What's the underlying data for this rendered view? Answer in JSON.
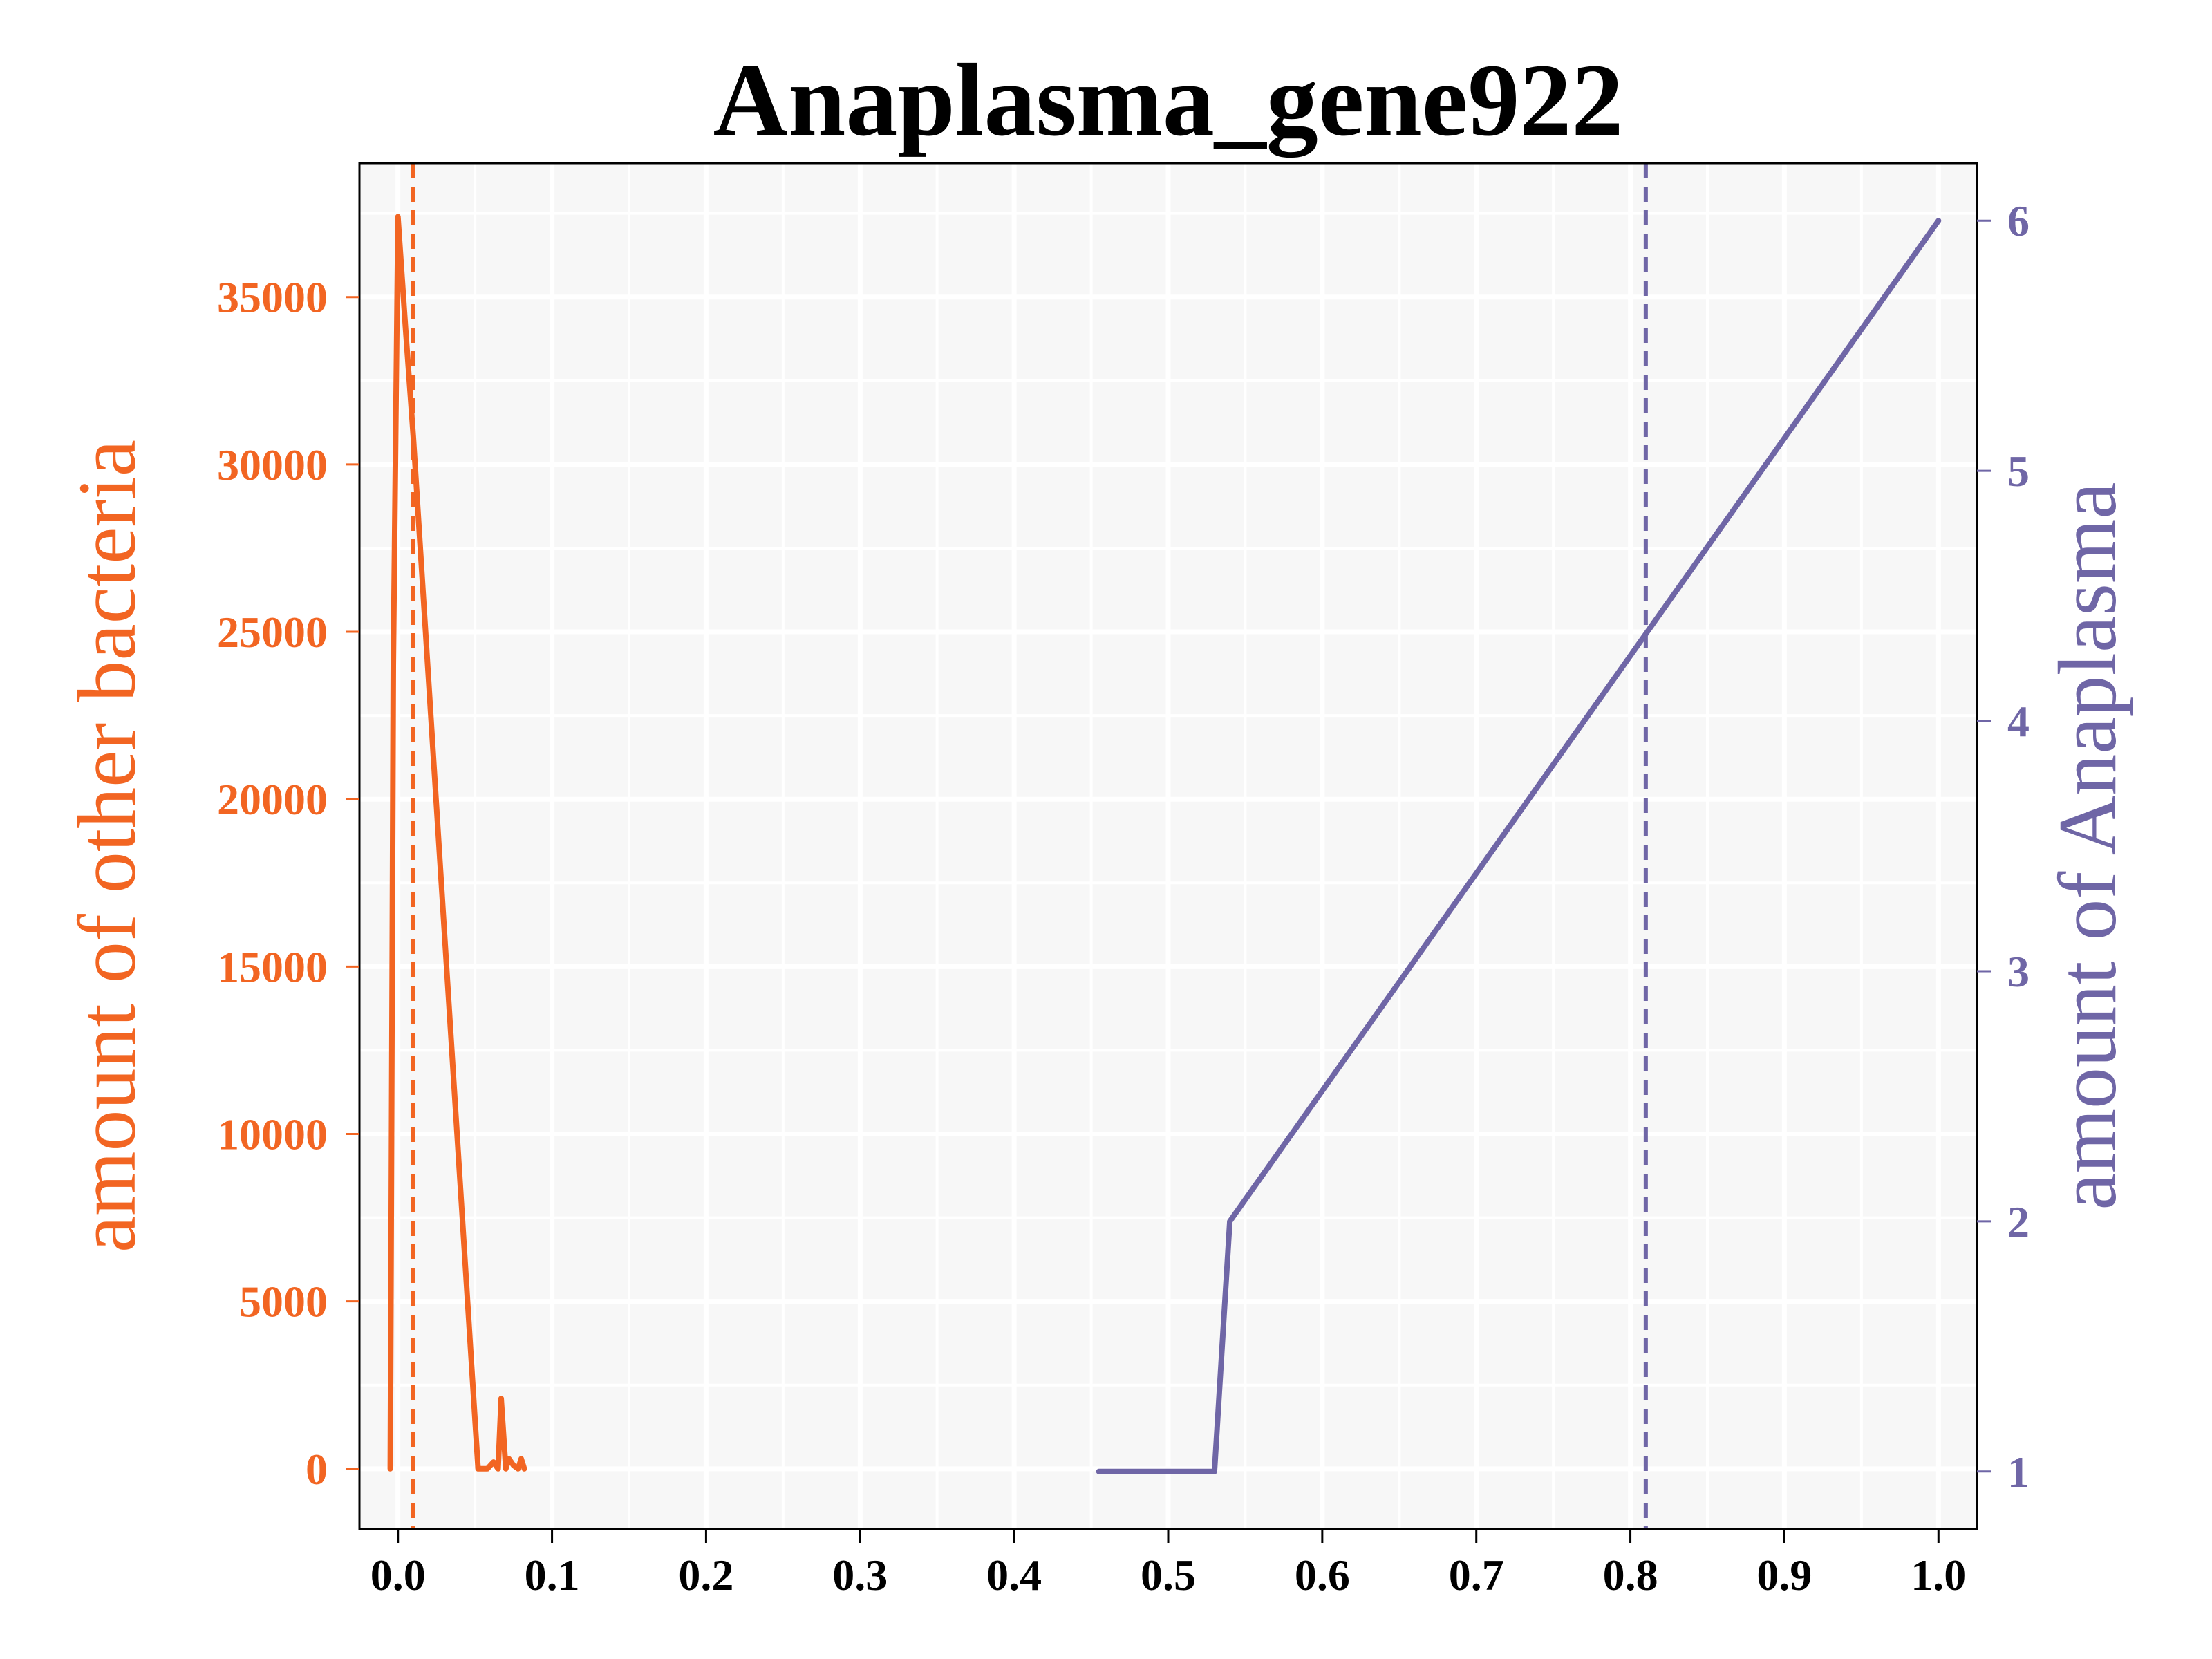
{
  "chart_data": {
    "type": "line",
    "title": "Anaplasma_gene922",
    "xlabel": "",
    "xlim": [
      -0.025,
      1.025
    ],
    "x_ticks": [
      0.0,
      0.1,
      0.2,
      0.3,
      0.4,
      0.5,
      0.6,
      0.7,
      0.8,
      0.9,
      1.0
    ],
    "x_tick_labels": [
      "0.0",
      "0.1",
      "0.2",
      "0.3",
      "0.4",
      "0.5",
      "0.6",
      "0.7",
      "0.8",
      "0.9",
      "1.0"
    ],
    "grid": true,
    "left_axis": {
      "label": "amount of other bacteria",
      "color": "#f26522",
      "ylim": [
        -1800,
        39000
      ],
      "ticks": [
        0,
        5000,
        10000,
        15000,
        20000,
        25000,
        30000,
        35000
      ],
      "tick_labels": [
        "0",
        "5000",
        "10000",
        "15000",
        "20000",
        "25000",
        "30000",
        "35000"
      ]
    },
    "right_axis": {
      "label": "amount of Anaplasma",
      "color": "#6f66a6",
      "ylim": [
        0.77,
        6.23
      ],
      "ticks": [
        1,
        2,
        3,
        4,
        5,
        6
      ],
      "tick_labels": [
        "1",
        "2",
        "3",
        "4",
        "5",
        "6"
      ]
    },
    "series": [
      {
        "axis": "left",
        "color": "#f26522",
        "x": [
          -0.005,
          -0.003,
          0.0,
          0.005,
          0.01,
          0.052,
          0.058,
          0.062,
          0.065,
          0.067,
          0.07,
          0.072,
          0.075,
          0.078,
          0.08,
          0.082
        ],
        "y": [
          0,
          24000,
          37400,
          34000,
          30800,
          0,
          0,
          200,
          0,
          2100,
          0,
          300,
          100,
          0,
          300,
          0
        ]
      },
      {
        "axis": "right",
        "color": "#6f66a6",
        "x": [
          0.455,
          0.53,
          0.54,
          1.0
        ],
        "y": [
          1.0,
          1.0,
          2.0,
          6.0
        ]
      }
    ],
    "vlines": [
      {
        "x": 0.01,
        "color": "#f26522",
        "style": "dashed"
      },
      {
        "x": 0.81,
        "color": "#6f66a6",
        "style": "dashed"
      }
    ]
  }
}
